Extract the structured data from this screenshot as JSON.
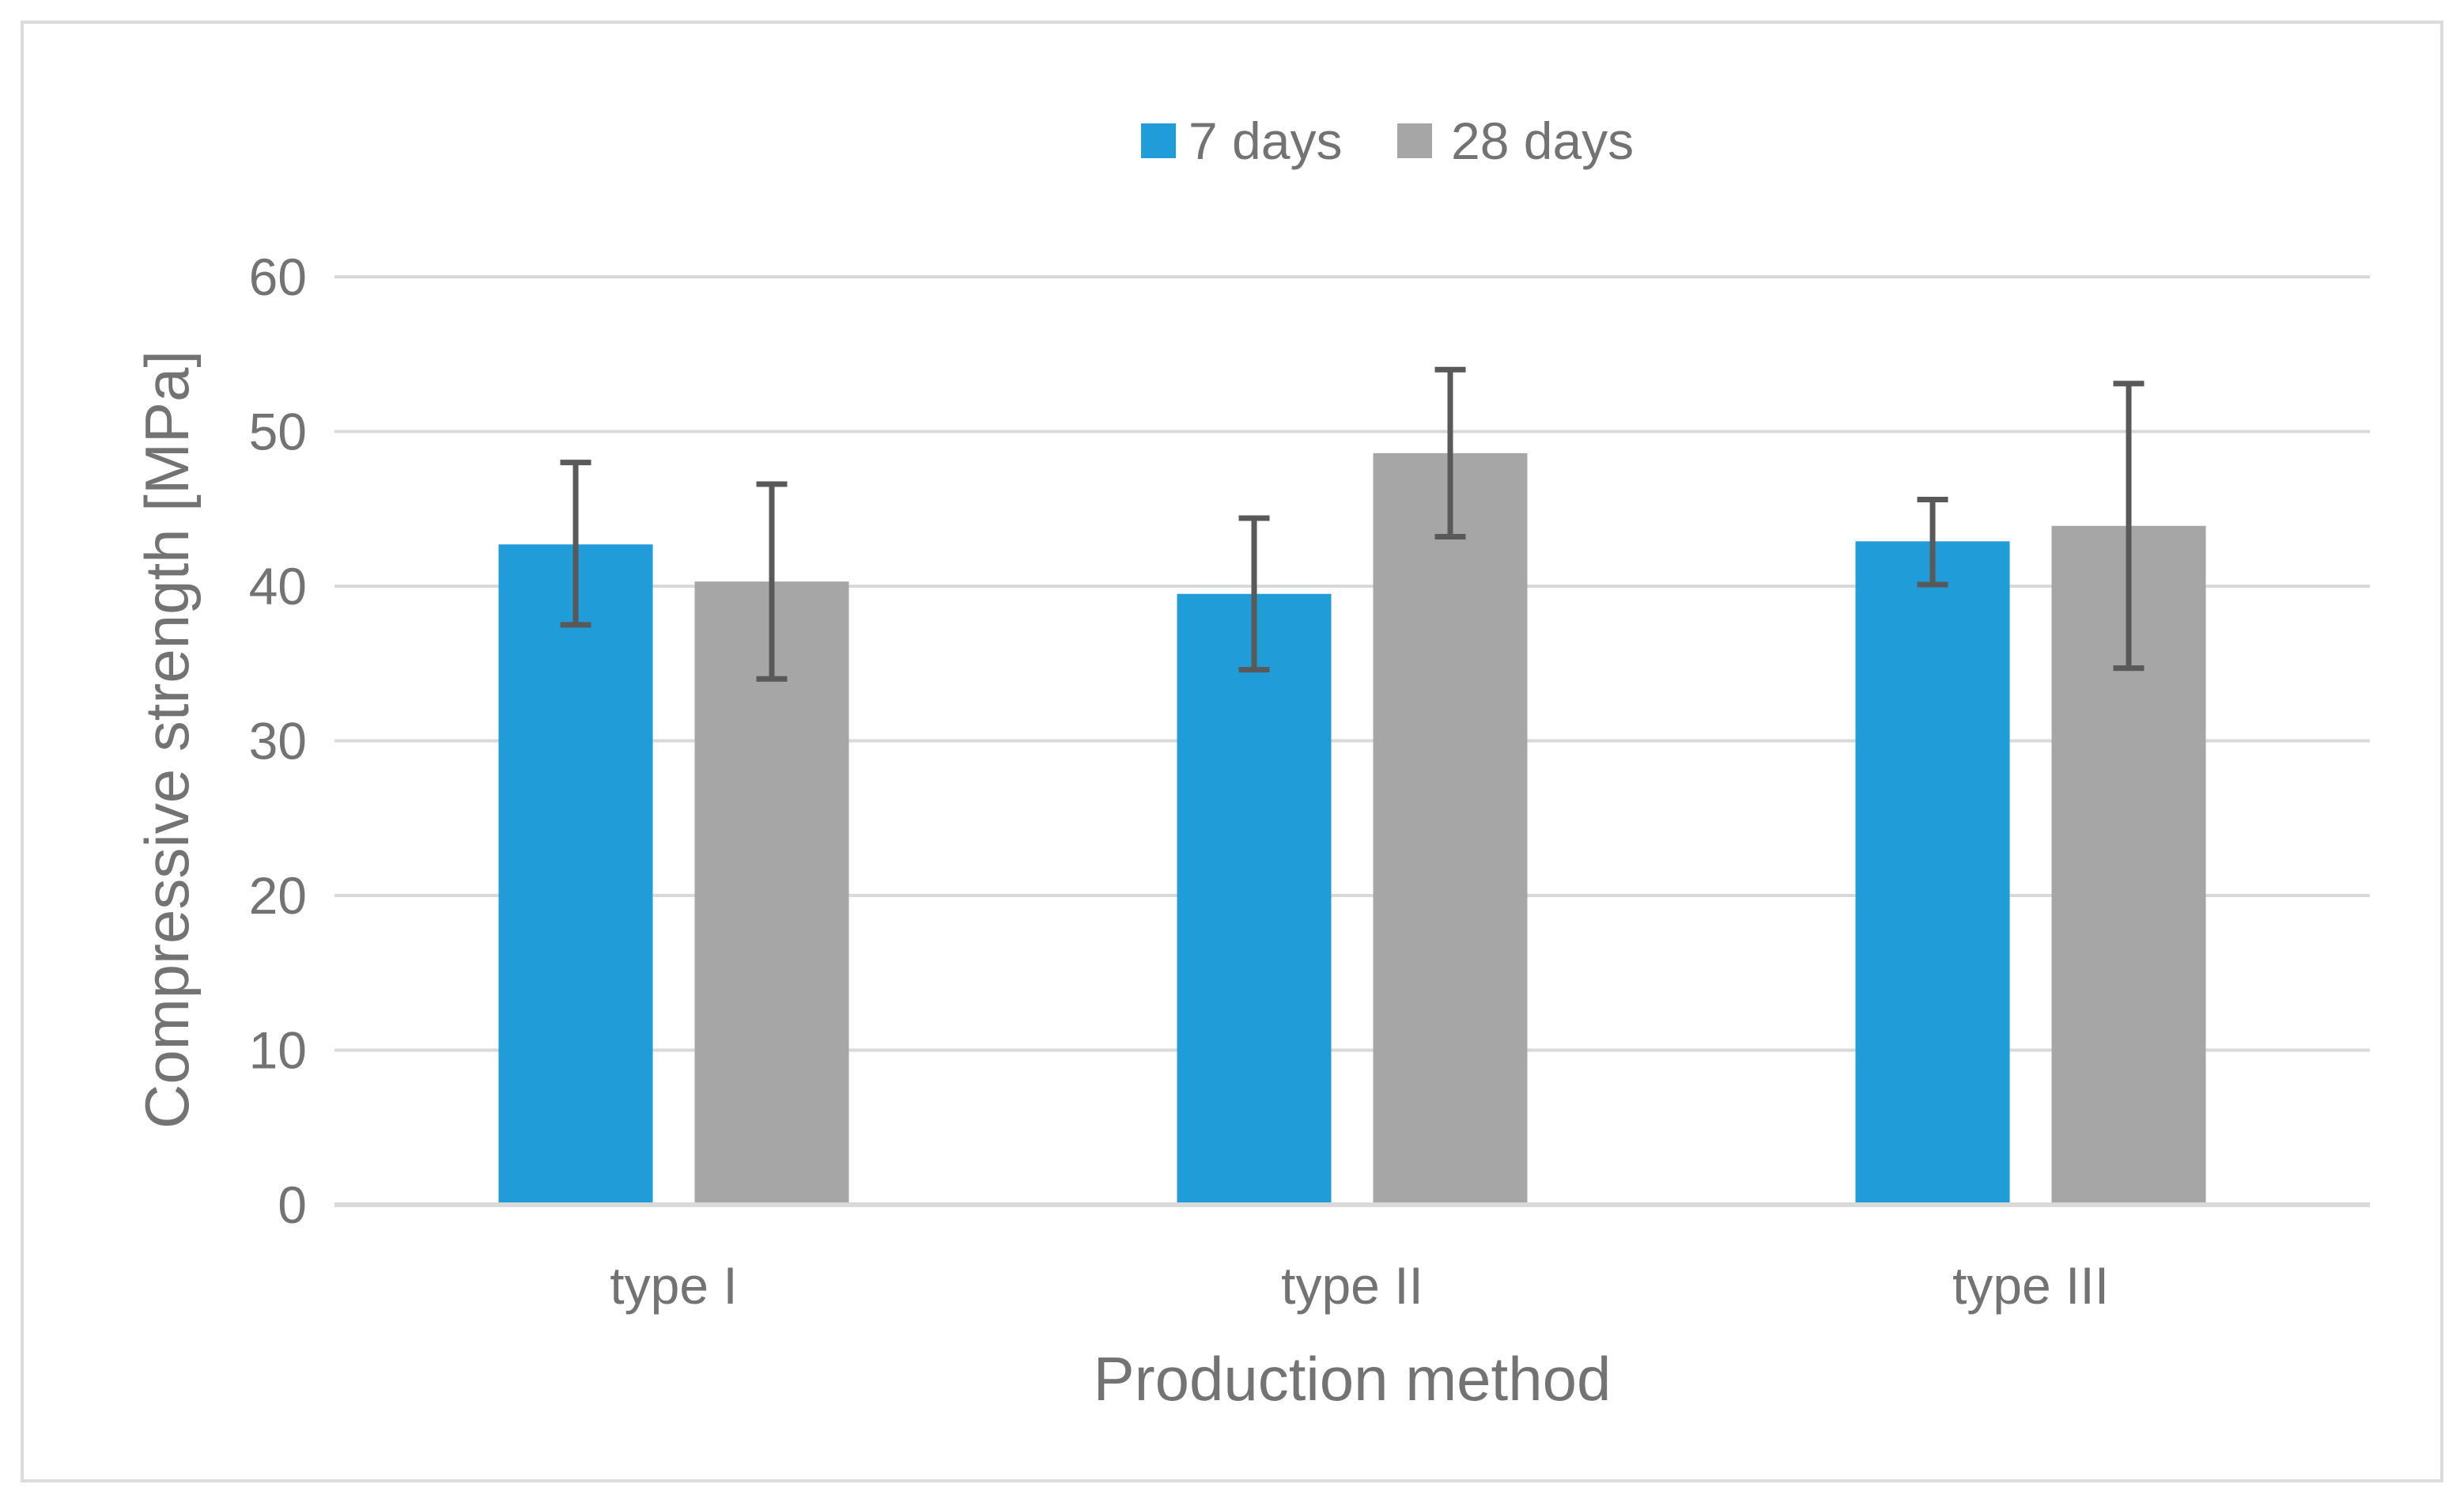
{
  "chart_data": {
    "type": "bar",
    "title": "",
    "xlabel": "Production method",
    "ylabel": "Compressive strength [MPa]",
    "categories": [
      "type I",
      "type II",
      "type III"
    ],
    "series": [
      {
        "name": "7 days",
        "color": "#209CD8",
        "values": [
          42.7,
          39.5,
          42.9
        ],
        "error_low": [
          37.5,
          34.6,
          40.1
        ],
        "error_high": [
          48.0,
          44.4,
          45.6
        ]
      },
      {
        "name": "28 days",
        "color": "#A6A6A6",
        "values": [
          40.3,
          48.6,
          43.9
        ],
        "error_low": [
          34.0,
          43.2,
          34.7
        ],
        "error_high": [
          46.6,
          54.0,
          53.1
        ]
      }
    ],
    "ylim": [
      0,
      60
    ],
    "yticks": [
      0,
      10,
      20,
      30,
      40,
      50,
      60
    ],
    "grid": true,
    "legend_position": "top-center",
    "error_bars": true
  },
  "style": {
    "series_colors": [
      "#209CD8",
      "#A6A6A6"
    ],
    "error_bar_color": "#595959",
    "gridline_color": "#D9D9D9",
    "axis_line_color": "#D9D9D9",
    "text_color": "#737373",
    "border_color": "#DBDBDB",
    "background_color": "#FFFFFF"
  }
}
